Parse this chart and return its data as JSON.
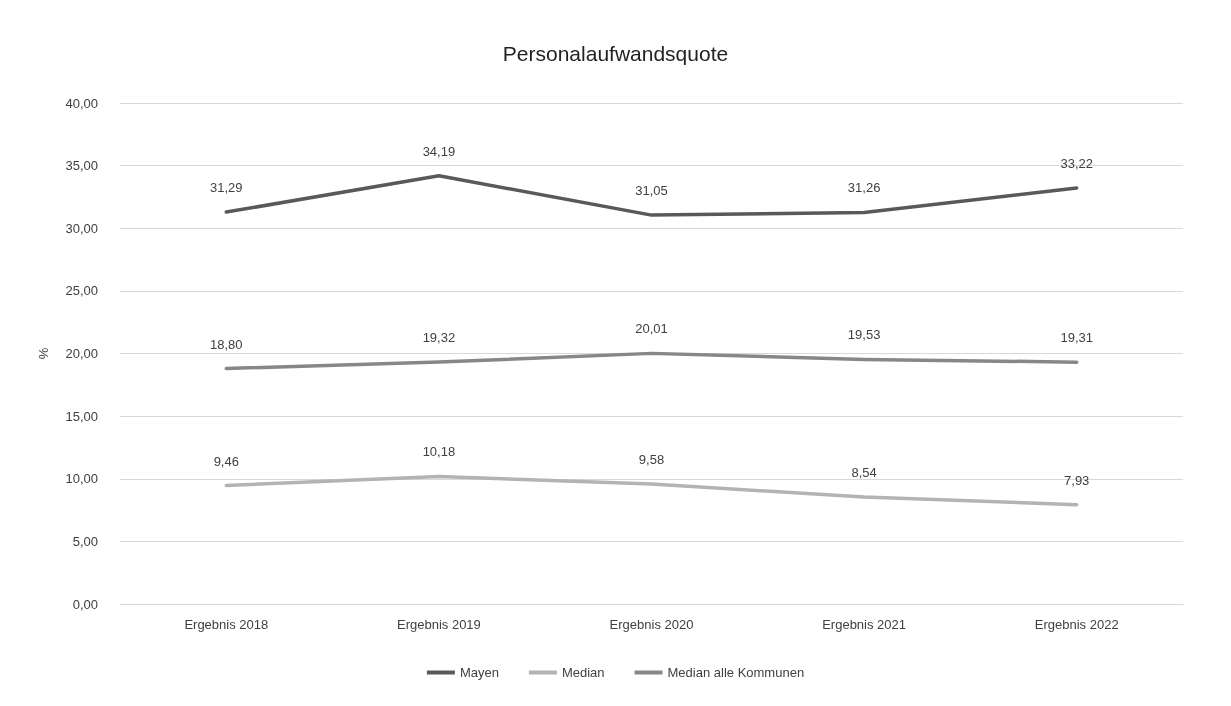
{
  "chart_data": {
    "type": "line",
    "title": "Personalaufwandsquote",
    "ylabel": "%",
    "categories": [
      "Ergebnis 2018",
      "Ergebnis 2019",
      "Ergebnis 2020",
      "Ergebnis 2021",
      "Ergebnis 2022"
    ],
    "series": [
      {
        "name": "Mayen",
        "color": "#595959",
        "values": [
          31.29,
          34.19,
          31.05,
          31.26,
          33.22
        ],
        "value_labels": [
          "31,29",
          "34,19",
          "31,05",
          "31,26",
          "33,22"
        ]
      },
      {
        "name": "Median",
        "color": "#b3b3b3",
        "values": [
          9.46,
          10.18,
          9.58,
          8.54,
          7.93
        ],
        "value_labels": [
          "9,46",
          "10,18",
          "9,58",
          "8,54",
          "7,93"
        ]
      },
      {
        "name": "Median alle Kommunen",
        "color": "#878787",
        "values": [
          18.8,
          19.32,
          20.01,
          19.53,
          19.31
        ],
        "value_labels": [
          "18,80",
          "19,32",
          "20,01",
          "19,53",
          "19,31"
        ]
      }
    ],
    "ylim": [
      0,
      40
    ],
    "yticks": [
      {
        "value": 0,
        "label": "0,00"
      },
      {
        "value": 5,
        "label": "5,00"
      },
      {
        "value": 10,
        "label": "10,00"
      },
      {
        "value": 15,
        "label": "15,00"
      },
      {
        "value": 20,
        "label": "20,00"
      },
      {
        "value": 25,
        "label": "25,00"
      },
      {
        "value": 30,
        "label": "30,00"
      },
      {
        "value": 35,
        "label": "35,00"
      },
      {
        "value": 40,
        "label": "40,00"
      }
    ],
    "grid": "y",
    "legend": "bottom",
    "marker": "none",
    "line_style": "solid"
  }
}
